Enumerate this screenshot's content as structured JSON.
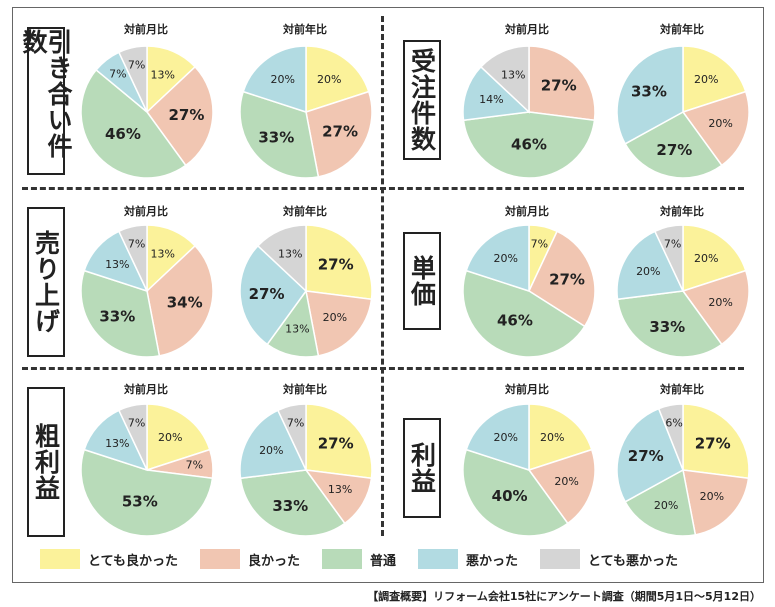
{
  "categories": [
    "とても良かった",
    "良かった",
    "普通",
    "悪かった",
    "とても悪かった"
  ],
  "colors": [
    "#fbf29a",
    "#f1c6b2",
    "#b8dbb9",
    "#b2dbe2",
    "#d5d5d5"
  ],
  "footnote": "【調査概要】リフォーム会社15社にアンケート調査（期間5月1日〜5月12日）",
  "panels": [
    {
      "label": "引き合い件数",
      "titles": [
        "対前月比",
        "対前年比"
      ]
    },
    {
      "label": "受注件数",
      "titles": [
        "対前月比",
        "対前年比"
      ]
    },
    {
      "label": "売り上げ",
      "titles": [
        "対前月比",
        "対前年比"
      ]
    },
    {
      "label": "単価",
      "titles": [
        "対前月比",
        "対前年比"
      ]
    },
    {
      "label": "粗利益",
      "titles": [
        "対前月比",
        "対前年比"
      ]
    },
    {
      "label": "利益",
      "titles": [
        "対前月比",
        "対前年比"
      ]
    }
  ],
  "chart_data": [
    {
      "type": "pie",
      "panel": "引き合い件数",
      "title": "対前月比",
      "categories": [
        "とても良かった",
        "良かった",
        "普通",
        "悪かった",
        "とても悪かった"
      ],
      "values": [
        13,
        27,
        46,
        7,
        7
      ]
    },
    {
      "type": "pie",
      "panel": "引き合い件数",
      "title": "対前年比",
      "categories": [
        "とても良かった",
        "良かった",
        "普通",
        "悪かった",
        "とても悪かった"
      ],
      "values": [
        20,
        27,
        33,
        20,
        0
      ]
    },
    {
      "type": "pie",
      "panel": "受注件数",
      "title": "対前月比",
      "categories": [
        "とても良かった",
        "良かった",
        "普通",
        "悪かった",
        "とても悪かった"
      ],
      "values": [
        0,
        27,
        46,
        14,
        13
      ]
    },
    {
      "type": "pie",
      "panel": "受注件数",
      "title": "対前年比",
      "categories": [
        "とても良かった",
        "良かった",
        "普通",
        "悪かった",
        "とても悪かった"
      ],
      "values": [
        20,
        20,
        27,
        33,
        0
      ]
    },
    {
      "type": "pie",
      "panel": "売り上げ",
      "title": "対前月比",
      "categories": [
        "とても良かった",
        "良かった",
        "普通",
        "悪かった",
        "とても悪かった"
      ],
      "values": [
        13,
        34,
        33,
        13,
        7
      ]
    },
    {
      "type": "pie",
      "panel": "売り上げ",
      "title": "対前年比",
      "categories": [
        "とても良かった",
        "良かった",
        "普通",
        "悪かった",
        "とても悪かった"
      ],
      "values": [
        27,
        20,
        13,
        27,
        13
      ]
    },
    {
      "type": "pie",
      "panel": "単価",
      "title": "対前月比",
      "categories": [
        "とても良かった",
        "良かった",
        "普通",
        "悪かった",
        "とても悪かった"
      ],
      "values": [
        7,
        27,
        46,
        20,
        0
      ]
    },
    {
      "type": "pie",
      "panel": "単価",
      "title": "対前年比",
      "categories": [
        "とても良かった",
        "良かった",
        "普通",
        "悪かった",
        "とても悪かった"
      ],
      "values": [
        20,
        20,
        33,
        20,
        7
      ]
    },
    {
      "type": "pie",
      "panel": "粗利益",
      "title": "対前月比",
      "categories": [
        "とても良かった",
        "良かった",
        "普通",
        "悪かった",
        "とても悪かった"
      ],
      "values": [
        20,
        7,
        53,
        13,
        7
      ]
    },
    {
      "type": "pie",
      "panel": "粗利益",
      "title": "対前年比",
      "categories": [
        "とても良かった",
        "良かった",
        "普通",
        "悪かった",
        "とても悪かった"
      ],
      "values": [
        27,
        13,
        33,
        20,
        7
      ]
    },
    {
      "type": "pie",
      "panel": "利益",
      "title": "対前月比",
      "categories": [
        "とても良かった",
        "良かった",
        "普通",
        "悪かった",
        "とても悪かった"
      ],
      "values": [
        20,
        20,
        40,
        20,
        0
      ]
    },
    {
      "type": "pie",
      "panel": "利益",
      "title": "対前年比",
      "categories": [
        "とても良かった",
        "良かった",
        "普通",
        "悪かった",
        "とても悪かった"
      ],
      "values": [
        27,
        20,
        20,
        27,
        6
      ]
    }
  ]
}
